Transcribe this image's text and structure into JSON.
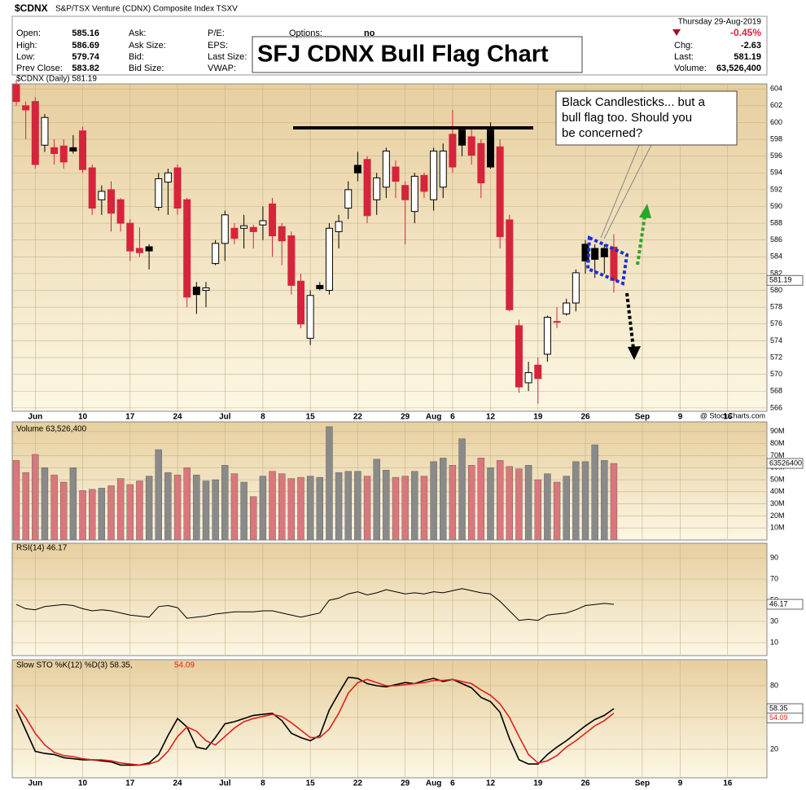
{
  "header": {
    "ticker": "$CDNX",
    "name": "S&P/TSX Venture (CDNX) Composite Index  TSXV",
    "date": "Thursday 29-Aug-2019",
    "quote": [
      [
        "Open:",
        "585.16"
      ],
      [
        "High:",
        "586.69"
      ],
      [
        "Low:",
        "579.74"
      ],
      [
        "Prev Close:",
        "583.82"
      ]
    ],
    "ask": [
      "Ask:",
      "Ask Size:",
      "Bid:",
      "Bid Size:"
    ],
    "pe": [
      "P/E:",
      "EPS:",
      "Last Size:",
      "VWAP:"
    ],
    "options": [
      "Options:",
      "no"
    ],
    "change_pct": "-0.45%",
    "right": [
      [
        "Chg:",
        "-2.63"
      ],
      [
        "Last:",
        "581.19"
      ],
      [
        "Volume:",
        "63,526,400"
      ]
    ],
    "credit": "@ StockCharts.com"
  },
  "annotations": {
    "title": "SFJ CDNX Bull Flag Chart",
    "callout": [
      "Black Candlesticks... but a",
      "bull flag too.  Should you",
      "be concerned?"
    ]
  },
  "chart_data": [
    {
      "type": "candlestick",
      "label": "$CDNX (Daily) 581.19",
      "up_color": "#000000",
      "down_color": "#d6243d",
      "categories": [
        null,
        null,
        "Jun",
        null,
        null,
        null,
        null,
        "10",
        null,
        null,
        null,
        null,
        "17",
        null,
        null,
        null,
        null,
        "24",
        null,
        null,
        null,
        null,
        "Jul",
        null,
        null,
        null,
        "8",
        null,
        null,
        null,
        null,
        "15",
        null,
        null,
        null,
        null,
        "22",
        null,
        null,
        null,
        null,
        "29",
        null,
        null,
        "Aug",
        null,
        "6",
        null,
        null,
        null,
        "12",
        null,
        null,
        null,
        null,
        "19",
        null,
        null,
        null,
        null,
        "26",
        null,
        null,
        null,
        null,
        null,
        "Sep",
        null,
        null,
        null,
        "9",
        null,
        null,
        null,
        null,
        "16",
        null,
        null,
        null,
        null
      ],
      "open": [
        604.5,
        602,
        602.5,
        597.3,
        597,
        597.2,
        597,
        599,
        594.6,
        590.8,
        592,
        590.8,
        588,
        585,
        585.2,
        589.9,
        592.9,
        594.6,
        590.8,
        580.4,
        580,
        583.2,
        585.6,
        587.4,
        587.4,
        587.5,
        587.8,
        590.3,
        587.6,
        586.5,
        581.1,
        574.3,
        580.6,
        580,
        587,
        589.8,
        594.9,
        595.6,
        590.8,
        592.3,
        594.7,
        592.5,
        589.4,
        593.7,
        590.8,
        592.3,
        598.6,
        599.1,
        598.3,
        597.5,
        599.1,
        597.1,
        588.4,
        575.8,
        569,
        571.1,
        572.4,
        576.3,
        577.2,
        578.5,
        585.5,
        585,
        585,
        585.16,
        null,
        null,
        null,
        null,
        null,
        null,
        null,
        null,
        null,
        null,
        null,
        null,
        null,
        null,
        null,
        null
      ],
      "high": [
        605,
        602.5,
        603,
        601,
        598,
        598,
        598.5,
        599.5,
        595,
        592.5,
        593,
        591,
        588.5,
        587.5,
        585.5,
        594,
        594.5,
        595,
        591,
        581,
        581,
        586,
        589.5,
        588,
        589,
        587.8,
        590,
        591,
        588,
        587,
        582,
        580,
        581,
        588,
        589,
        593,
        596.5,
        596,
        594,
        597,
        595.5,
        593,
        594,
        594,
        597,
        597.5,
        601.5,
        599.5,
        599.5,
        598,
        600,
        598,
        589,
        576.5,
        571.5,
        572,
        577,
        578,
        579,
        582.5,
        586,
        585.5,
        585.5,
        586.69,
        null,
        null,
        null,
        null,
        null,
        null,
        null,
        null,
        null,
        null,
        null,
        null,
        null,
        null,
        null,
        null
      ],
      "low": [
        602,
        598,
        594.5,
        596.5,
        595,
        594.5,
        596.3,
        594,
        589,
        589,
        587,
        587,
        583.5,
        584,
        582.5,
        589.5,
        589,
        589,
        578,
        577.2,
        578,
        583,
        583.5,
        585.5,
        585,
        585,
        586,
        584,
        583,
        579.5,
        575.5,
        573.5,
        580,
        579.5,
        585,
        588.5,
        593,
        588,
        589,
        591,
        591,
        585.5,
        588,
        591,
        589.5,
        591,
        594,
        596,
        595,
        591,
        594.5,
        585,
        577.5,
        567.8,
        568,
        566.5,
        571.5,
        575.5,
        577,
        577.5,
        582,
        581.5,
        582,
        579.74,
        null,
        null,
        null,
        null,
        null,
        null,
        null,
        null,
        null,
        null,
        null,
        null,
        null,
        null,
        null,
        null
      ],
      "close": [
        602.5,
        601.5,
        595,
        600.6,
        596.3,
        595.3,
        596.6,
        594.4,
        589.8,
        591.8,
        589.2,
        588,
        584.7,
        584.5,
        584.7,
        593.3,
        594,
        589.8,
        579.2,
        579.5,
        580.3,
        585.6,
        589,
        586.2,
        587.7,
        587,
        588.3,
        586.5,
        585.9,
        580.6,
        576,
        579.4,
        580.2,
        587.4,
        588.2,
        592,
        594,
        588.9,
        593.4,
        596.6,
        593,
        590.8,
        593.6,
        591.8,
        596.6,
        596.6,
        594.7,
        597.3,
        596.1,
        592.8,
        594.7,
        586.4,
        577.7,
        568.5,
        570.2,
        569.5,
        576.8,
        576.2,
        578.5,
        582.1,
        583.5,
        583.7,
        584,
        581.19,
        null,
        null,
        null,
        null,
        null,
        null,
        null,
        null,
        null,
        null,
        null,
        null,
        null,
        null,
        null,
        null
      ],
      "ylim": [
        565.6,
        604.6
      ],
      "yticks": [
        566,
        568,
        570,
        572,
        574,
        576,
        578,
        580,
        582,
        584,
        586,
        588,
        590,
        592,
        594,
        596,
        598,
        600,
        602,
        604
      ],
      "grid": true
    },
    {
      "type": "bar",
      "label": "Volume 63,526,400",
      "up_color": "#8a8a8a",
      "down_color": "#d9777c",
      "values": [
        66000000,
        56000000,
        71000000,
        60000000,
        54000000,
        48000000,
        60000000,
        41000000,
        42000000,
        43000000,
        45000000,
        51000000,
        46000000,
        49000000,
        53000000,
        75000000,
        56000000,
        54000000,
        60000000,
        54000000,
        49000000,
        50000000,
        62000000,
        55000000,
        48000000,
        36000000,
        53000000,
        57000000,
        55000000,
        51000000,
        52000000,
        53000000,
        52000000,
        94000000,
        56000000,
        57000000,
        57000000,
        53000000,
        67000000,
        58000000,
        52000000,
        53000000,
        57000000,
        53000000,
        65000000,
        68000000,
        62000000,
        84000000,
        62000000,
        68000000,
        60000000,
        66000000,
        61000000,
        59000000,
        62000000,
        50000000,
        55000000,
        48000000,
        53000000,
        65000000,
        65000000,
        79000000,
        66000000,
        63526400,
        null,
        null,
        null,
        null,
        null,
        null,
        null,
        null,
        null,
        null,
        null,
        null,
        null,
        null,
        null,
        null
      ],
      "ylim": [
        0,
        98000000
      ],
      "yticks": [
        {
          "value": 10000000,
          "label": "10M"
        },
        {
          "value": 20000000,
          "label": "20M"
        },
        {
          "value": 30000000,
          "label": "30M"
        },
        {
          "value": 40000000,
          "label": "40M"
        },
        {
          "value": 50000000,
          "label": "50M"
        },
        {
          "value": 60000000,
          "label": "60M"
        },
        {
          "value": 70000000,
          "label": "70M"
        },
        {
          "value": 80000000,
          "label": "80M"
        },
        {
          "value": 90000000,
          "label": "90M"
        }
      ]
    },
    {
      "type": "line",
      "label": "RSI(14) 46.17",
      "series": [
        {
          "color": "#000000",
          "values": [
            46,
            42,
            41,
            44,
            45,
            46,
            45,
            42,
            40,
            41,
            40,
            38,
            36,
            35,
            34,
            44,
            45,
            43,
            33,
            34,
            35,
            37,
            38,
            39,
            39,
            39,
            40,
            40,
            38,
            36,
            34,
            36,
            38,
            50,
            52,
            56,
            58,
            55,
            57,
            60,
            58,
            56,
            57,
            56,
            58,
            57,
            59,
            61,
            59,
            57,
            56,
            49,
            40,
            31,
            32,
            31,
            36,
            37,
            38,
            41,
            45,
            46,
            47,
            46.17,
            null,
            null,
            null,
            null,
            null,
            null,
            null,
            null,
            null,
            null,
            null,
            null,
            null,
            null,
            null,
            null
          ]
        }
      ],
      "ylim": [
        0,
        100
      ],
      "yticks": [
        10,
        30,
        50,
        70,
        90
      ],
      "grid": true
    },
    {
      "type": "line",
      "label": "Slow STO %K(12) %D(3) 58.35,",
      "series": [
        {
          "color": "#000000",
          "values": [
            58,
            38,
            18,
            16,
            15,
            12,
            11,
            10,
            10,
            9,
            8,
            5,
            5,
            5,
            7,
            15,
            33,
            49,
            41,
            22,
            20,
            31,
            44,
            46,
            49,
            52,
            53,
            54,
            47,
            35,
            31,
            28,
            33,
            57,
            73,
            88,
            87,
            82,
            80,
            79,
            81,
            83,
            82,
            85,
            87,
            84,
            86,
            82,
            78,
            69,
            65,
            55,
            30,
            10,
            6,
            6,
            15,
            22,
            28,
            35,
            42,
            48,
            52,
            58.35,
            null,
            null,
            null,
            null,
            null,
            null,
            null,
            null,
            null,
            null,
            null,
            null,
            null,
            null,
            null,
            null
          ]
        },
        {
          "color": "#e0201b",
          "values": [
            62,
            50,
            35,
            24,
            17,
            14,
            13,
            11,
            10,
            10,
            9,
            7,
            6,
            5,
            6,
            9,
            18,
            32,
            41,
            37,
            28,
            24,
            32,
            40,
            46,
            49,
            51,
            53,
            51,
            45,
            38,
            31,
            31,
            39,
            54,
            73,
            83,
            86,
            83,
            80,
            80,
            81,
            82,
            83,
            85,
            85,
            86,
            84,
            82,
            76,
            71,
            63,
            50,
            32,
            15,
            7,
            9,
            14,
            22,
            28,
            35,
            42,
            47,
            54.09,
            null,
            null,
            null,
            null,
            null,
            null,
            null,
            null,
            null,
            null,
            null,
            null,
            null,
            null,
            null,
            null
          ]
        }
      ],
      "ylim": [
        -7,
        104
      ],
      "yticks": [
        20,
        50,
        80
      ],
      "grid": true
    }
  ]
}
